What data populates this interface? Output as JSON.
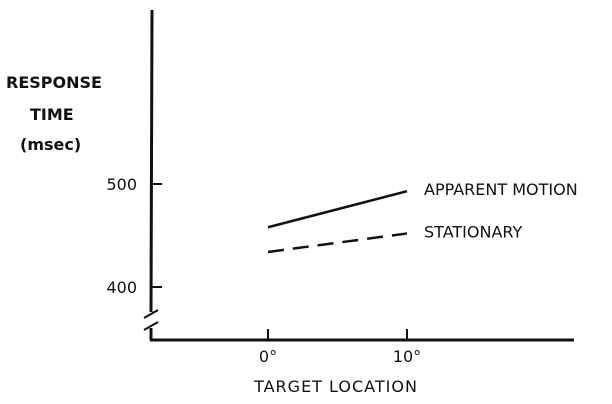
{
  "chart_data": {
    "type": "line",
    "title": "",
    "ylabel": {
      "line1": "RESPONSE",
      "line2": "TIME",
      "line3": "(msec)"
    },
    "xlabel": "TARGET LOCATION",
    "x": [
      "0°",
      "10°"
    ],
    "y_ticks": [
      400,
      500
    ],
    "ylim": [
      350,
      600
    ],
    "y_axis_break": true,
    "series": [
      {
        "name": "APPARENT MOTION",
        "values": [
          458,
          493
        ],
        "style": "solid"
      },
      {
        "name": "STATIONARY",
        "values": [
          434,
          452
        ],
        "style": "dashed"
      }
    ],
    "grid": false,
    "legend": "inline labels at line ends",
    "colors": {
      "ink": "#111111",
      "background": "#ffffff"
    }
  }
}
